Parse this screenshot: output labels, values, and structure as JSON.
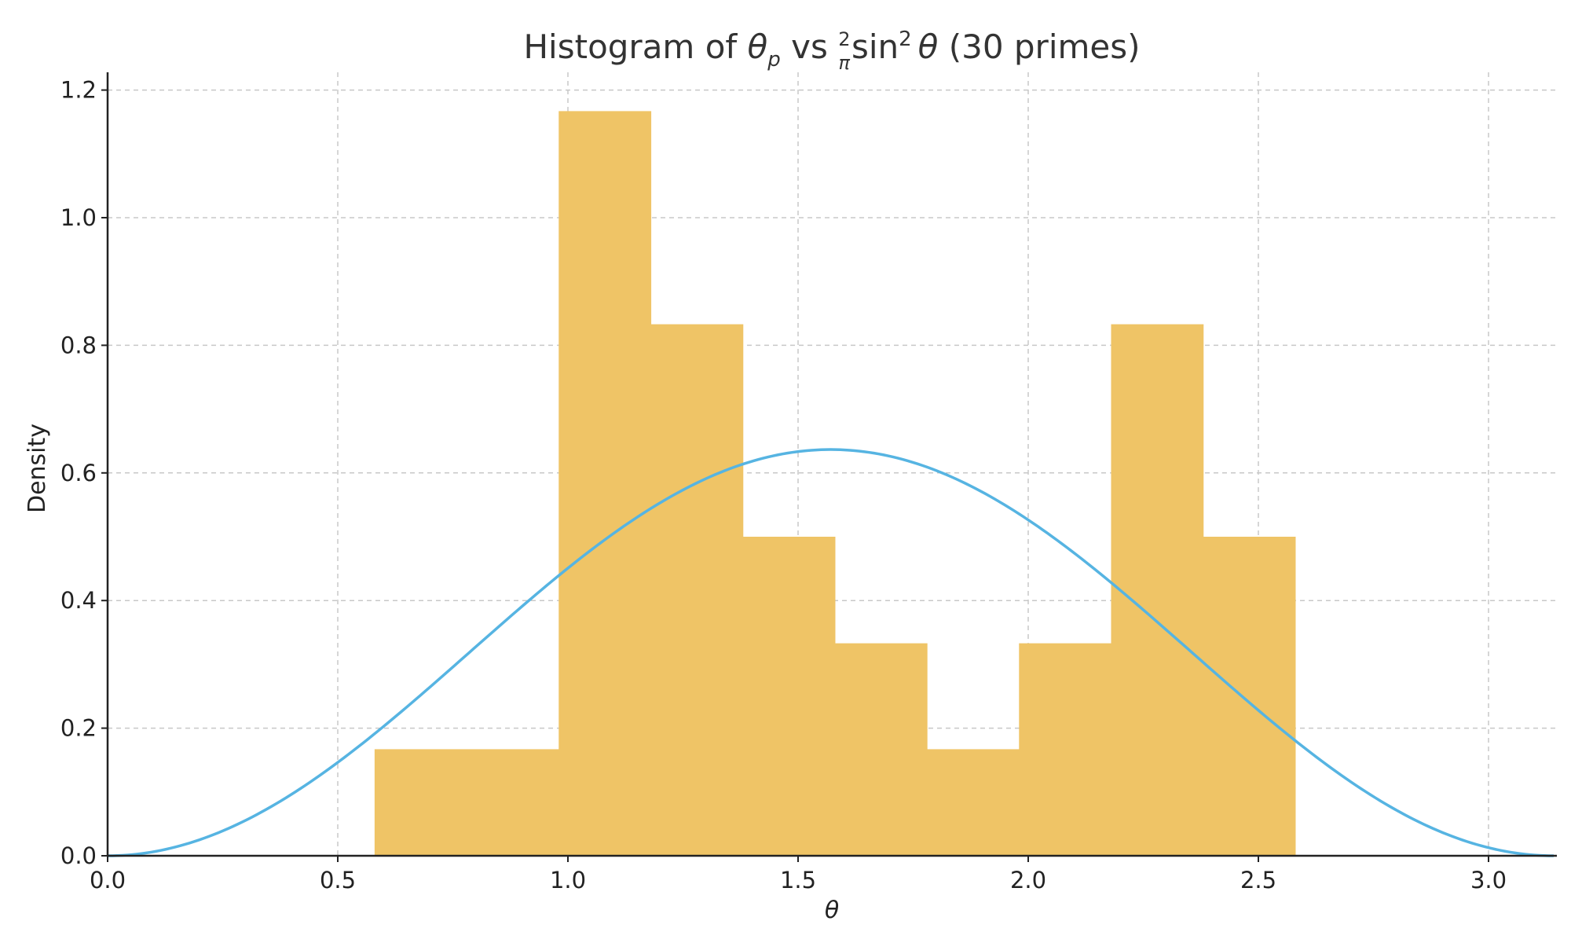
{
  "chart_data": {
    "type": "bar",
    "title": {
      "prefix": "Histogram of ",
      "theta": "θ",
      "sub": "p",
      "mid": " vs ",
      "frac_num": "2",
      "frac_den": "π",
      "sin": "sin",
      "sup": "2",
      "theta2": "θ",
      "suffix": " (30 primes)"
    },
    "xlabel": "θ",
    "ylabel": "Density",
    "xlim": [
      0,
      3.1416
    ],
    "ylim": [
      0,
      1.22
    ],
    "xticks": [
      0.0,
      0.5,
      1.0,
      1.5,
      2.0,
      2.5,
      3.0
    ],
    "xtick_labels": [
      "0.0",
      "0.5",
      "1.0",
      "1.5",
      "2.0",
      "2.5",
      "3.0"
    ],
    "yticks": [
      0.0,
      0.2,
      0.4,
      0.6,
      0.8,
      1.0,
      1.2
    ],
    "ytick_labels": [
      "0.0",
      "0.2",
      "0.4",
      "0.6",
      "0.8",
      "1.0",
      "1.2"
    ],
    "grid": true,
    "bar_color": "#efc466",
    "curve_color": "#56b4e2",
    "histogram": {
      "bin_edges": [
        0.58,
        0.98,
        1.18,
        1.38,
        1.58,
        1.78,
        1.98,
        2.18,
        2.38,
        2.58
      ],
      "values": [
        0.167,
        1.167,
        0.833,
        0.5,
        0.333,
        0.167,
        0.333,
        0.833,
        0.5
      ]
    },
    "curve": {
      "function": "(2/pi)*sin^2(theta)",
      "x_range": [
        0,
        3.1416
      ]
    }
  }
}
